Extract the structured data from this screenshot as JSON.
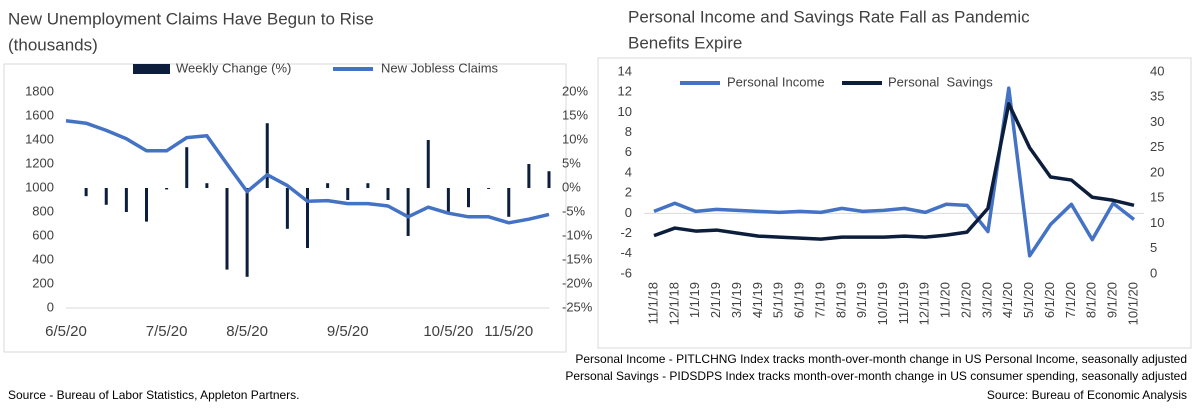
{
  "chart_data": [
    {
      "type": "combo",
      "title": [
        "New Unemployment Claims Have Begun to Rise",
        "(thousands)"
      ],
      "categories": [
        "6/5/20",
        null,
        null,
        null,
        null,
        "7/5/20",
        null,
        null,
        null,
        "8/5/20",
        null,
        null,
        null,
        null,
        "9/5/20",
        null,
        null,
        null,
        null,
        "10/5/20",
        null,
        null,
        "11/5/20",
        null,
        null
      ],
      "series": [
        {
          "name": "Weekly Change (%)",
          "kind": "bar",
          "axis": "y2",
          "color": "#0c1e3c",
          "values": [
            null,
            -1.7,
            -3.5,
            -5,
            -7,
            -0.3,
            8.5,
            1,
            -17,
            -18.5,
            13.5,
            -8.5,
            -12.5,
            1,
            -2.5,
            1,
            -2.5,
            -10,
            10,
            -5,
            -4,
            -0.2,
            -6,
            5,
            3.5
          ]
        },
        {
          "name": "New Jobless Claims",
          "kind": "line",
          "axis": "y",
          "color": "#4472c4",
          "values": [
            1560,
            1540,
            1480,
            1410,
            1310,
            1310,
            1420,
            1435,
            1200,
            970,
            1110,
            1020,
            890,
            895,
            870,
            870,
            850,
            760,
            840,
            790,
            760,
            760,
            710,
            740,
            780
          ]
        }
      ],
      "ylim": [
        0,
        1800
      ],
      "yticks": [
        0,
        200,
        400,
        600,
        800,
        1000,
        1200,
        1400,
        1600,
        1800
      ],
      "y2lim": [
        -25,
        20
      ],
      "y2ticks": [
        {
          "value": -25,
          "label": "-25%"
        },
        {
          "value": -20,
          "label": "-20%"
        },
        {
          "value": -15,
          "label": "-15%"
        },
        {
          "value": -10,
          "label": "-10%"
        },
        {
          "value": -5,
          "label": "-5%"
        },
        {
          "value": 0,
          "label": "0%"
        },
        {
          "value": 5,
          "label": "5%"
        },
        {
          "value": 10,
          "label": "10%"
        },
        {
          "value": 15,
          "label": "15%"
        },
        {
          "value": 20,
          "label": "20%"
        }
      ],
      "source": "Source - Bureau of Labor Statistics, Appleton Partners."
    },
    {
      "type": "line",
      "title": [
        "Personal Income and Savings Rate Fall as Pandemic",
        "Benefits Expire"
      ],
      "categories": [
        "11/1/18",
        "12/1/18",
        "1/1/19",
        "2/1/19",
        "3/1/19",
        "4/1/19",
        "5/1/19",
        "6/1/19",
        "7/1/19",
        "8/1/19",
        "9/1/19",
        "10/1/19",
        "11/1/19",
        "12/1/19",
        "1/1/20",
        "2/1/20",
        "3/1/20",
        "4/1/20",
        "5/1/20",
        "6/1/20",
        "7/1/20",
        "8/1/20",
        "9/1/20",
        "10/1/20"
      ],
      "series": [
        {
          "name": "Personal Income",
          "kind": "line",
          "axis": "y",
          "color": "#4472c4",
          "values": [
            0.2,
            1.0,
            0.2,
            0.4,
            0.3,
            0.2,
            0.1,
            0.2,
            0.1,
            0.5,
            0.2,
            0.3,
            0.5,
            0.1,
            0.9,
            0.8,
            -1.8,
            12.4,
            -4.2,
            -1.1,
            0.9,
            -2.6,
            1.0,
            -0.6
          ]
        },
        {
          "name": "Personal  Savings",
          "kind": "line",
          "axis": "y2",
          "color": "#0c1e3c",
          "values": [
            7.6,
            9.1,
            8.5,
            8.7,
            8.1,
            7.5,
            7.3,
            7.1,
            6.9,
            7.3,
            7.3,
            7.3,
            7.5,
            7.3,
            7.7,
            8.3,
            13,
            33.7,
            25,
            19.2,
            18.6,
            15.2,
            14.6,
            13.6
          ]
        }
      ],
      "ylim": [
        -6,
        14
      ],
      "yticks": [
        -6,
        -4,
        -2,
        0,
        2,
        4,
        6,
        8,
        10,
        12,
        14
      ],
      "y2lim": [
        0,
        40
      ],
      "y2ticks": [
        0,
        5,
        10,
        15,
        20,
        25,
        30,
        35,
        40
      ],
      "notes": [
        "Personal Income - PITLCHNG Index tracks month-over-month change in US Personal Income, seasonally adjusted",
        "Personal Savings - PIDSDPS Index tracks month-over-month change in US consumer spending, seasonally adjusted"
      ],
      "source": "Source: Bureau of Economic Analysis"
    }
  ]
}
